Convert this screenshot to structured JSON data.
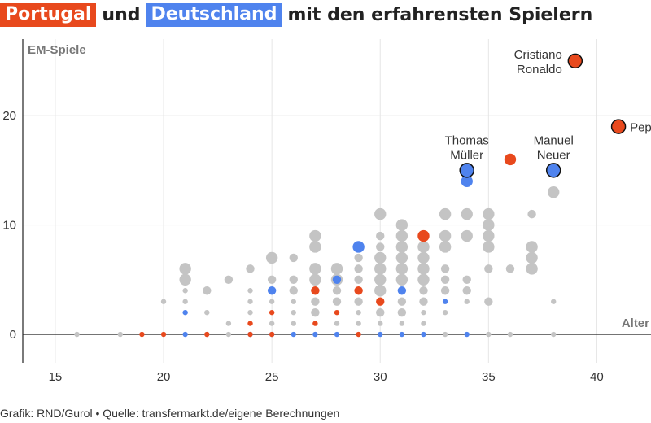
{
  "colors": {
    "portugal": "#e8491d",
    "germany": "#4f83ee",
    "other": "#c4c4c4",
    "axis": "#222222",
    "grid": "#e6e6e6",
    "text": "#333333"
  },
  "title": {
    "portugal": "Portugal",
    "und": "und",
    "germany": "Deutschland",
    "rest": "mit den erfahrensten Spielern"
  },
  "footer": "Grafik: RND/Gurol • Quelle: transfermarkt.de/eigene Berechnungen",
  "chart_data": {
    "type": "scatter",
    "xlabel": "Alter",
    "ylabel": "EM-Spiele",
    "xlim": [
      13.5,
      42.5
    ],
    "ylim": [
      -2.6,
      27
    ],
    "xticks": [
      "15",
      "20",
      "25",
      "30",
      "35",
      "40"
    ],
    "yticks": [
      "0",
      "10",
      "20"
    ],
    "grid": true,
    "series": [
      {
        "group": "other",
        "points": [
          {
            "x": 16,
            "y": 0,
            "n": 1
          },
          {
            "x": 18,
            "y": 0,
            "n": 1
          },
          {
            "x": 20,
            "y": 3,
            "n": 1
          },
          {
            "x": 21,
            "y": 6,
            "n": 3
          },
          {
            "x": 21,
            "y": 5,
            "n": 3
          },
          {
            "x": 21,
            "y": 4,
            "n": 1
          },
          {
            "x": 21,
            "y": 3,
            "n": 1
          },
          {
            "x": 22,
            "y": 4,
            "n": 2
          },
          {
            "x": 22,
            "y": 2,
            "n": 1
          },
          {
            "x": 22,
            "y": 0,
            "n": 1
          },
          {
            "x": 23,
            "y": 5,
            "n": 2
          },
          {
            "x": 23,
            "y": 1,
            "n": 1
          },
          {
            "x": 23,
            "y": 0,
            "n": 1
          },
          {
            "x": 24,
            "y": 6,
            "n": 2
          },
          {
            "x": 24,
            "y": 4,
            "n": 1
          },
          {
            "x": 24,
            "y": 3,
            "n": 1
          },
          {
            "x": 24,
            "y": 2,
            "n": 1
          },
          {
            "x": 25,
            "y": 7,
            "n": 3
          },
          {
            "x": 25,
            "y": 5,
            "n": 2
          },
          {
            "x": 25,
            "y": 3,
            "n": 1
          },
          {
            "x": 25,
            "y": 1,
            "n": 1
          },
          {
            "x": 26,
            "y": 7,
            "n": 2
          },
          {
            "x": 26,
            "y": 5,
            "n": 2
          },
          {
            "x": 26,
            "y": 4,
            "n": 2
          },
          {
            "x": 26,
            "y": 3,
            "n": 1
          },
          {
            "x": 26,
            "y": 2,
            "n": 1
          },
          {
            "x": 26,
            "y": 1,
            "n": 1
          },
          {
            "x": 27,
            "y": 9,
            "n": 3
          },
          {
            "x": 27,
            "y": 8,
            "n": 3
          },
          {
            "x": 27,
            "y": 6,
            "n": 3
          },
          {
            "x": 27,
            "y": 5,
            "n": 3
          },
          {
            "x": 27,
            "y": 3,
            "n": 2
          },
          {
            "x": 27,
            "y": 2,
            "n": 2
          },
          {
            "x": 27,
            "y": 0,
            "n": 1
          },
          {
            "x": 28,
            "y": 6,
            "n": 3
          },
          {
            "x": 28,
            "y": 5,
            "n": 3
          },
          {
            "x": 28,
            "y": 4,
            "n": 2
          },
          {
            "x": 28,
            "y": 3,
            "n": 2
          },
          {
            "x": 28,
            "y": 1,
            "n": 1
          },
          {
            "x": 29,
            "y": 7,
            "n": 2
          },
          {
            "x": 29,
            "y": 6,
            "n": 2
          },
          {
            "x": 29,
            "y": 5,
            "n": 2
          },
          {
            "x": 29,
            "y": 3,
            "n": 2
          },
          {
            "x": 29,
            "y": 2,
            "n": 1
          },
          {
            "x": 29,
            "y": 1,
            "n": 1
          },
          {
            "x": 29,
            "y": 0,
            "n": 1
          },
          {
            "x": 30,
            "y": 11,
            "n": 3
          },
          {
            "x": 30,
            "y": 9,
            "n": 2
          },
          {
            "x": 30,
            "y": 8,
            "n": 2
          },
          {
            "x": 30,
            "y": 7,
            "n": 3
          },
          {
            "x": 30,
            "y": 6,
            "n": 3
          },
          {
            "x": 30,
            "y": 5,
            "n": 3
          },
          {
            "x": 30,
            "y": 4,
            "n": 3
          },
          {
            "x": 30,
            "y": 2,
            "n": 2
          },
          {
            "x": 30,
            "y": 1,
            "n": 1
          },
          {
            "x": 31,
            "y": 10,
            "n": 3
          },
          {
            "x": 31,
            "y": 9,
            "n": 3
          },
          {
            "x": 31,
            "y": 8,
            "n": 3
          },
          {
            "x": 31,
            "y": 7,
            "n": 3
          },
          {
            "x": 31,
            "y": 6,
            "n": 3
          },
          {
            "x": 31,
            "y": 5,
            "n": 3
          },
          {
            "x": 31,
            "y": 3,
            "n": 2
          },
          {
            "x": 31,
            "y": 2,
            "n": 2
          },
          {
            "x": 31,
            "y": 1,
            "n": 1
          },
          {
            "x": 32,
            "y": 8,
            "n": 3
          },
          {
            "x": 32,
            "y": 7,
            "n": 3
          },
          {
            "x": 32,
            "y": 6,
            "n": 3
          },
          {
            "x": 32,
            "y": 5,
            "n": 3
          },
          {
            "x": 32,
            "y": 4,
            "n": 2
          },
          {
            "x": 32,
            "y": 3,
            "n": 2
          },
          {
            "x": 32,
            "y": 2,
            "n": 1
          },
          {
            "x": 32,
            "y": 1,
            "n": 1
          },
          {
            "x": 33,
            "y": 11,
            "n": 3
          },
          {
            "x": 33,
            "y": 9,
            "n": 3
          },
          {
            "x": 33,
            "y": 8,
            "n": 3
          },
          {
            "x": 33,
            "y": 6,
            "n": 2
          },
          {
            "x": 33,
            "y": 5,
            "n": 2
          },
          {
            "x": 33,
            "y": 4,
            "n": 2
          },
          {
            "x": 33,
            "y": 2,
            "n": 1
          },
          {
            "x": 33,
            "y": 0,
            "n": 1
          },
          {
            "x": 34,
            "y": 11,
            "n": 3
          },
          {
            "x": 34,
            "y": 9,
            "n": 3
          },
          {
            "x": 34,
            "y": 5,
            "n": 2
          },
          {
            "x": 34,
            "y": 4,
            "n": 2
          },
          {
            "x": 34,
            "y": 3,
            "n": 1
          },
          {
            "x": 35,
            "y": 11,
            "n": 3
          },
          {
            "x": 35,
            "y": 10,
            "n": 3
          },
          {
            "x": 35,
            "y": 9,
            "n": 3
          },
          {
            "x": 35,
            "y": 8,
            "n": 3
          },
          {
            "x": 35,
            "y": 6,
            "n": 2
          },
          {
            "x": 35,
            "y": 3,
            "n": 2
          },
          {
            "x": 35,
            "y": 0,
            "n": 1
          },
          {
            "x": 36,
            "y": 6,
            "n": 2
          },
          {
            "x": 36,
            "y": 0,
            "n": 1
          },
          {
            "x": 37,
            "y": 11,
            "n": 2
          },
          {
            "x": 37,
            "y": 8,
            "n": 3
          },
          {
            "x": 37,
            "y": 7,
            "n": 3
          },
          {
            "x": 37,
            "y": 6,
            "n": 3
          },
          {
            "x": 38,
            "y": 13,
            "n": 3
          },
          {
            "x": 38,
            "y": 3,
            "n": 1
          },
          {
            "x": 38,
            "y": 0,
            "n": 1
          }
        ]
      },
      {
        "group": "germany",
        "points": [
          {
            "x": 21,
            "y": 2,
            "n": 1
          },
          {
            "x": 21,
            "y": 0,
            "n": 1
          },
          {
            "x": 24,
            "y": 0,
            "n": 1
          },
          {
            "x": 25,
            "y": 4,
            "n": 2
          },
          {
            "x": 25,
            "y": 0,
            "n": 1
          },
          {
            "x": 26,
            "y": 0,
            "n": 1
          },
          {
            "x": 27,
            "y": 0,
            "n": 1
          },
          {
            "x": 28,
            "y": 5,
            "n": 2
          },
          {
            "x": 28,
            "y": 0,
            "n": 1
          },
          {
            "x": 29,
            "y": 8,
            "n": 3
          },
          {
            "x": 30,
            "y": 0,
            "n": 1
          },
          {
            "x": 31,
            "y": 4,
            "n": 2
          },
          {
            "x": 31,
            "y": 0,
            "n": 1
          },
          {
            "x": 32,
            "y": 0,
            "n": 1
          },
          {
            "x": 33,
            "y": 3,
            "n": 1
          },
          {
            "x": 34,
            "y": 14,
            "n": 3
          },
          {
            "x": 34,
            "y": 0,
            "n": 1
          }
        ]
      },
      {
        "group": "portugal",
        "points": [
          {
            "x": 19,
            "y": 0,
            "n": 1
          },
          {
            "x": 20,
            "y": 0,
            "n": 1
          },
          {
            "x": 22,
            "y": 0,
            "n": 1
          },
          {
            "x": 24,
            "y": 1,
            "n": 1
          },
          {
            "x": 24,
            "y": 0,
            "n": 1
          },
          {
            "x": 25,
            "y": 2,
            "n": 1
          },
          {
            "x": 25,
            "y": 0,
            "n": 1
          },
          {
            "x": 27,
            "y": 4,
            "n": 2
          },
          {
            "x": 27,
            "y": 1,
            "n": 1
          },
          {
            "x": 28,
            "y": 2,
            "n": 1
          },
          {
            "x": 29,
            "y": 4,
            "n": 2
          },
          {
            "x": 29,
            "y": 0,
            "n": 1
          },
          {
            "x": 30,
            "y": 3,
            "n": 2
          },
          {
            "x": 32,
            "y": 9,
            "n": 3
          },
          {
            "x": 36,
            "y": 16,
            "n": 3
          }
        ]
      }
    ],
    "highlights": [
      {
        "name": "Cristiano Ronaldo",
        "lines": [
          "Cristiano",
          "Ronaldo"
        ],
        "x": 39,
        "y": 25,
        "group": "portugal",
        "label_pos": "left"
      },
      {
        "name": "Pepe",
        "lines": [
          "Pepe"
        ],
        "x": 41,
        "y": 19,
        "group": "portugal",
        "label_pos": "right"
      },
      {
        "name": "Thomas Müller",
        "lines": [
          "Thomas",
          "Müller"
        ],
        "x": 34,
        "y": 15,
        "group": "germany",
        "label_pos": "above"
      },
      {
        "name": "Manuel Neuer",
        "lines": [
          "Manuel",
          "Neuer"
        ],
        "x": 38,
        "y": 15,
        "group": "germany",
        "label_pos": "above"
      }
    ]
  }
}
